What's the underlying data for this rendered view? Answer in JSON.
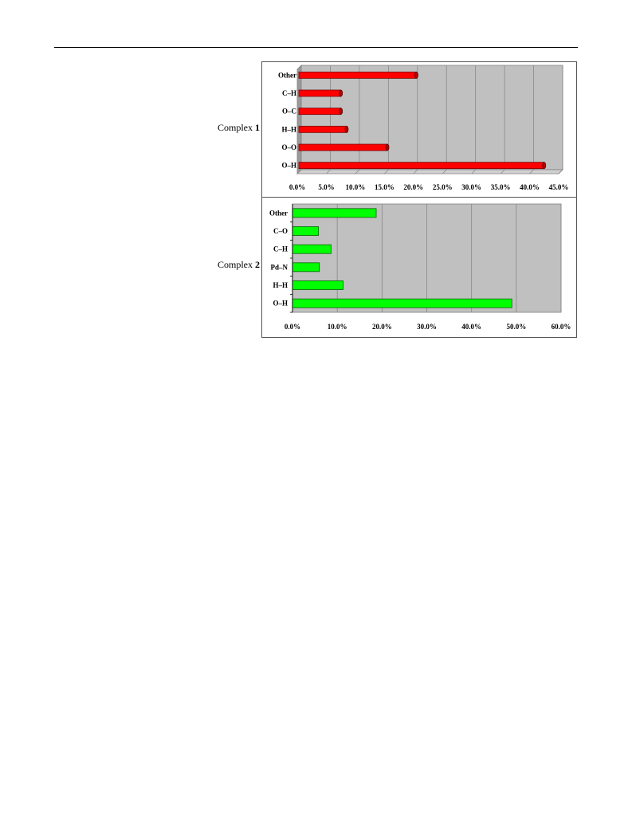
{
  "labels": {
    "complex1_prefix": "Complex",
    "complex1_number": "1",
    "complex2_prefix": "Complex",
    "complex2_number": "2"
  },
  "chart_data": [
    {
      "type": "bar",
      "orientation": "horizontal",
      "style": "3d",
      "color": "#ff0000",
      "categories": [
        "O–H",
        "O–O",
        "H–H",
        "O–C",
        "C–H",
        "Other"
      ],
      "values": [
        42.5,
        15.5,
        8.5,
        7.5,
        7.5,
        20.5
      ],
      "xlim": [
        0,
        45
      ],
      "xticks": [
        "0.0%",
        "5.0%",
        "10.0%",
        "15.0%",
        "20.0%",
        "25.0%",
        "30.0%",
        "35.0%",
        "40.0%",
        "45.0%"
      ],
      "grid": true,
      "title": "",
      "xlabel": "",
      "ylabel": ""
    },
    {
      "type": "bar",
      "orientation": "horizontal",
      "style": "flat",
      "color": "#00ff00",
      "categories": [
        "O–H",
        "H–H",
        "Pd–N",
        "C–H",
        "C–O",
        "Other"
      ],
      "values": [
        49.0,
        11.3,
        6.0,
        8.6,
        5.8,
        18.7
      ],
      "xlim": [
        0,
        60
      ],
      "xticks": [
        "0.0%",
        "10.0%",
        "20.0%",
        "30.0%",
        "40.0%",
        "50.0%",
        "60.0%"
      ],
      "grid": true,
      "title": "",
      "xlabel": "",
      "ylabel": ""
    }
  ]
}
